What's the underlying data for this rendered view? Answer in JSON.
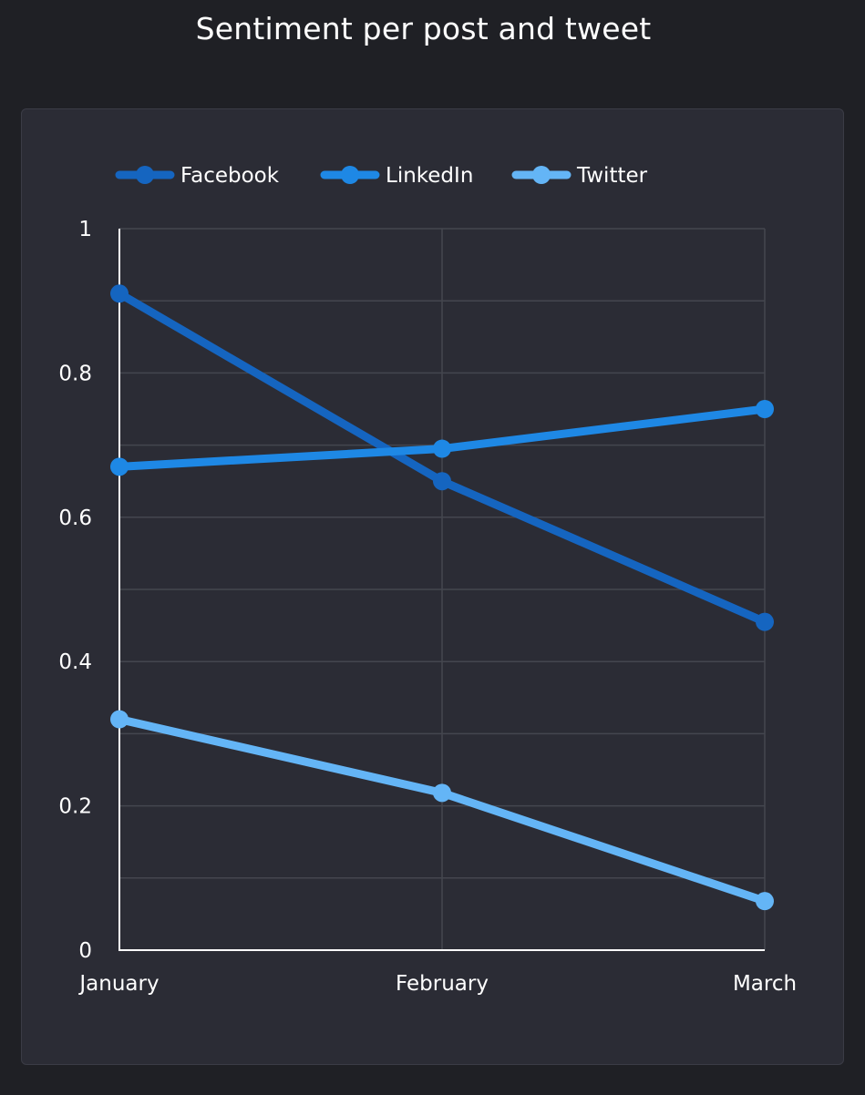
{
  "chart_data": {
    "type": "line",
    "title": "Sentiment per post and tweet",
    "categories": [
      "January",
      "February",
      "March"
    ],
    "series": [
      {
        "name": "Facebook",
        "color": "#1565c0",
        "values": [
          0.91,
          0.65,
          0.455
        ]
      },
      {
        "name": "LinkedIn",
        "color": "#1e88e5",
        "values": [
          0.67,
          0.695,
          0.75
        ]
      },
      {
        "name": "Twitter",
        "color": "#64b5f6",
        "values": [
          0.32,
          0.218,
          0.068
        ]
      }
    ],
    "ylim": [
      0,
      1
    ],
    "yticks": [
      "0",
      "0.2",
      "0.4",
      "0.6",
      "0.8",
      "1"
    ],
    "ytick_values": [
      0,
      0.2,
      0.4,
      0.6,
      0.8,
      1
    ],
    "ygrid_values": [
      0.1,
      0.2,
      0.3,
      0.4,
      0.5,
      0.6,
      0.7,
      0.8,
      0.9,
      1
    ],
    "grid": true,
    "legend_position": "top-left",
    "background": "#2b2c35",
    "page_background": "#1f2025",
    "grid_color": "#44464f",
    "axis_color": "#ffffff"
  }
}
